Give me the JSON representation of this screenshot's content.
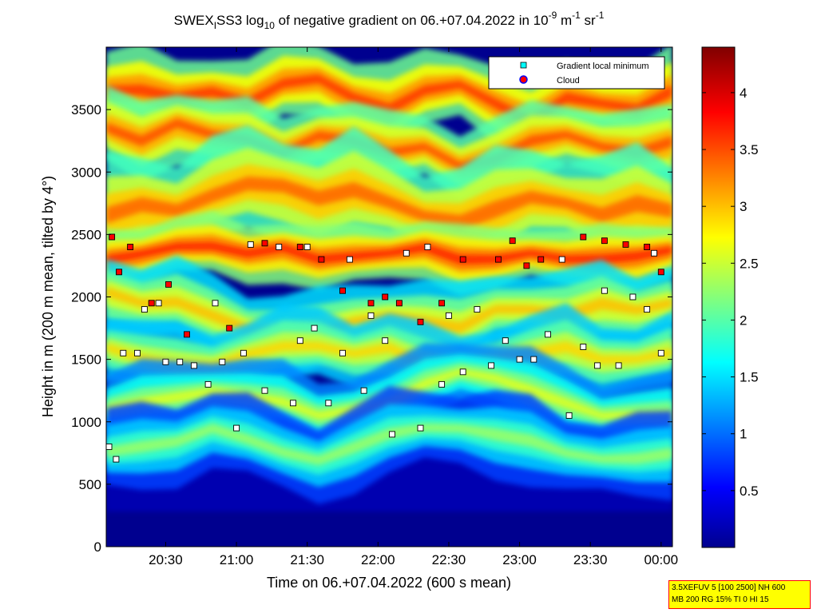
{
  "title": {
    "prefix": "SWEX",
    "subscript_1": "I",
    "part2": "SS3 log",
    "subscript_2": "10",
    "part3": " of negative gradient on 06.+07.04.2022 in 10",
    "sup_1": "-9",
    "part4": " m",
    "sup_2": "-1",
    "part5": " sr",
    "sup_3": "-1"
  },
  "chart_data": {
    "type": "heatmap",
    "xlabel": "Time on 06.+07.04.2022 (600 s mean)",
    "ylabel": "Height in m (200 m mean, tilted by 4°)",
    "x_ticks": [
      "20:30",
      "21:00",
      "21:30",
      "22:00",
      "22:30",
      "23:00",
      "23:30",
      "00:00"
    ],
    "x_tick_hours": [
      20.5,
      21.0,
      21.5,
      22.0,
      22.5,
      23.0,
      23.5,
      24.0
    ],
    "xlim_hours": [
      20.08,
      24.08
    ],
    "y_ticks": [
      0,
      500,
      1000,
      1500,
      2000,
      2500,
      3000,
      3500
    ],
    "ylim": [
      0,
      4000
    ],
    "colorbar": {
      "ticks": [
        0.5,
        1,
        1.5,
        2,
        2.5,
        3,
        3.5,
        4
      ],
      "tick_labels": [
        "0.5",
        "1",
        "1.5",
        "2",
        "2.5",
        "3",
        "3.5",
        "4"
      ],
      "range": [
        0,
        4.4
      ],
      "colormap": "jet"
    },
    "legend": {
      "position": "top-right",
      "entries": [
        {
          "label": "Gradient local minimum",
          "marker": "square",
          "color": "#00ffff"
        },
        {
          "label": "Cloud",
          "marker": "circle",
          "color": "#ff0000",
          "edge": "#0000ff"
        }
      ]
    },
    "layers": [
      {
        "name": "bright layer 1",
        "center_m": [
          3650,
          3650,
          3600,
          3650,
          3550,
          3700,
          3750,
          3600,
          3500,
          3650,
          3700,
          3550,
          3400,
          3600,
          3550,
          3500,
          3650
        ],
        "thickness_m": 120,
        "level": 3.0
      },
      {
        "name": "bright layer 2",
        "center_m": [
          3350,
          3250,
          3400,
          3300,
          3250,
          3150,
          3300,
          3250,
          3150,
          3200,
          3050,
          3100,
          3250,
          3300,
          3200,
          3150,
          3250
        ],
        "thickness_m": 110,
        "level": 2.9
      },
      {
        "name": "bright layer 3",
        "center_m": [
          2650,
          2750,
          2700,
          2800,
          2900,
          2900,
          2800,
          2850,
          2750,
          2650,
          2600,
          2700,
          2800,
          2750,
          2650,
          2750,
          2700
        ],
        "thickness_m": 160,
        "level": 2.8
      },
      {
        "name": "bright layer 4",
        "center_m": [
          2300,
          2350,
          2400,
          2400,
          2350,
          2400,
          2300,
          2320,
          2350,
          2400,
          2300,
          2300,
          2350,
          2300,
          2300,
          2330,
          2380
        ],
        "thickness_m": 90,
        "level": 3.1
      },
      {
        "name": "bright layer 5",
        "center_m": [
          2050,
          1950,
          1950,
          1850,
          1750,
          1700,
          1700,
          1800,
          1850,
          1800,
          1750,
          1900,
          1900,
          1850,
          1950,
          1900,
          1950
        ],
        "thickness_m": 120,
        "level": 2.4
      },
      {
        "name": "bright layer 6",
        "center_m": [
          1600,
          1500,
          1450,
          1450,
          1550,
          1600,
          1600,
          1550,
          1600,
          1450,
          1400,
          1500,
          1550,
          1600,
          1500,
          1500,
          1550
        ],
        "thickness_m": 110,
        "level": 2.3
      },
      {
        "name": "bright layer 7",
        "center_m": [
          1100,
          1150,
          1200,
          1250,
          1200,
          1150,
          1050,
          1100,
          1150,
          1300,
          1400,
          1350,
          1250,
          1150,
          1050,
          1050,
          1050
        ],
        "thickness_m": 110,
        "level": 2.0
      },
      {
        "name": "bright layer 8",
        "center_m": [
          750,
          800,
          850,
          950,
          850,
          750,
          700,
          800,
          900,
          950,
          950,
          900,
          850,
          750,
          700,
          700,
          750
        ],
        "thickness_m": 120,
        "level": 1.7
      }
    ],
    "layer_x_hours": [
      20.08,
      20.33,
      20.58,
      20.83,
      21.08,
      21.33,
      21.58,
      21.83,
      22.08,
      22.33,
      22.58,
      22.83,
      23.08,
      23.33,
      23.58,
      23.83,
      24.08
    ],
    "markers_gradient_local_minimum": [
      [
        20.1,
        800
      ],
      [
        20.15,
        700
      ],
      [
        20.2,
        1550
      ],
      [
        20.3,
        1550
      ],
      [
        20.35,
        1900
      ],
      [
        20.45,
        1950
      ],
      [
        20.5,
        1480
      ],
      [
        20.6,
        1480
      ],
      [
        20.7,
        1450
      ],
      [
        20.8,
        1300
      ],
      [
        20.85,
        1950
      ],
      [
        20.9,
        1480
      ],
      [
        21.0,
        950
      ],
      [
        21.05,
        1550
      ],
      [
        21.1,
        2420
      ],
      [
        21.2,
        1250
      ],
      [
        21.3,
        2400
      ],
      [
        21.4,
        1150
      ],
      [
        21.45,
        1650
      ],
      [
        21.5,
        2400
      ],
      [
        21.55,
        1750
      ],
      [
        21.65,
        1150
      ],
      [
        21.75,
        1550
      ],
      [
        21.8,
        2300
      ],
      [
        21.9,
        1250
      ],
      [
        21.95,
        1850
      ],
      [
        22.05,
        1650
      ],
      [
        22.1,
        900
      ],
      [
        22.2,
        2350
      ],
      [
        22.3,
        950
      ],
      [
        22.35,
        2400
      ],
      [
        22.45,
        1300
      ],
      [
        22.5,
        1850
      ],
      [
        22.6,
        1400
      ],
      [
        22.7,
        1900
      ],
      [
        22.8,
        1450
      ],
      [
        22.9,
        1650
      ],
      [
        23.0,
        1500
      ],
      [
        23.1,
        1500
      ],
      [
        23.2,
        1700
      ],
      [
        23.3,
        2300
      ],
      [
        23.35,
        1050
      ],
      [
        23.45,
        1600
      ],
      [
        23.55,
        1450
      ],
      [
        23.6,
        2050
      ],
      [
        23.7,
        1450
      ],
      [
        23.8,
        2000
      ],
      [
        23.9,
        1900
      ],
      [
        23.95,
        2350
      ],
      [
        24.0,
        1550
      ]
    ],
    "markers_cloud": [
      [
        20.12,
        2480
      ],
      [
        20.17,
        2200
      ],
      [
        20.25,
        2400
      ],
      [
        20.4,
        1950
      ],
      [
        20.52,
        2100
      ],
      [
        20.65,
        1700
      ],
      [
        20.95,
        1750
      ],
      [
        21.2,
        2430
      ],
      [
        21.45,
        2400
      ],
      [
        21.6,
        2300
      ],
      [
        21.75,
        2050
      ],
      [
        21.95,
        1950
      ],
      [
        22.05,
        2000
      ],
      [
        22.15,
        1950
      ],
      [
        22.3,
        1800
      ],
      [
        22.45,
        1950
      ],
      [
        22.6,
        2300
      ],
      [
        22.85,
        2300
      ],
      [
        22.95,
        2450
      ],
      [
        23.05,
        2250
      ],
      [
        23.15,
        2300
      ],
      [
        23.45,
        2480
      ],
      [
        23.6,
        2450
      ],
      [
        23.75,
        2420
      ],
      [
        23.9,
        2400
      ],
      [
        24.0,
        2200
      ]
    ]
  },
  "param_box": {
    "line1": "3.5XEFUV 5 [100 2500] NH 600",
    "line2": "MB 200 RG 15% TI 0 HI 15"
  }
}
